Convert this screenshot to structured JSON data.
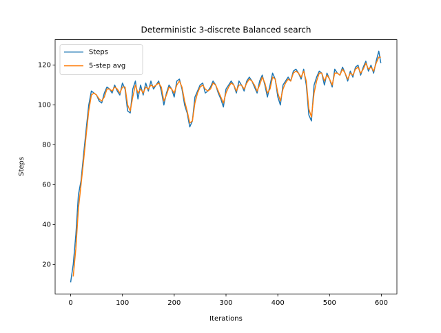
{
  "chart_data": {
    "type": "line",
    "title": "Deterministic 3-discrete Balanced search",
    "x_label": "Iterations",
    "y_label": "Steps",
    "x": [
      0,
      5,
      10,
      15,
      20,
      25,
      30,
      35,
      40,
      45,
      50,
      55,
      60,
      65,
      70,
      75,
      80,
      85,
      90,
      95,
      100,
      105,
      110,
      115,
      120,
      125,
      130,
      135,
      140,
      145,
      150,
      155,
      160,
      165,
      170,
      175,
      180,
      185,
      190,
      195,
      200,
      205,
      210,
      215,
      220,
      225,
      230,
      235,
      240,
      245,
      250,
      255,
      260,
      265,
      270,
      275,
      280,
      285,
      290,
      295,
      300,
      305,
      310,
      315,
      320,
      325,
      330,
      335,
      340,
      345,
      350,
      355,
      360,
      365,
      370,
      375,
      380,
      385,
      390,
      395,
      400,
      405,
      410,
      415,
      420,
      425,
      430,
      435,
      440,
      445,
      450,
      455,
      460,
      465,
      470,
      475,
      480,
      485,
      490,
      495,
      500,
      505,
      510,
      515,
      520,
      525,
      530,
      535,
      540,
      545,
      550,
      555,
      560,
      565,
      570,
      575,
      580,
      585,
      590,
      595,
      599
    ],
    "series": [
      {
        "name": "Steps",
        "color": "#1f77b4",
        "values": [
          11,
          20,
          35,
          55,
          62,
          75,
          88,
          100,
          107,
          106,
          105,
          102,
          101,
          106,
          109,
          108,
          106,
          110,
          107,
          105,
          111,
          108,
          97,
          96,
          108,
          112,
          103,
          110,
          105,
          111,
          107,
          112,
          108,
          110,
          112,
          107,
          100,
          106,
          110,
          108,
          104,
          112,
          113,
          108,
          100,
          96,
          89,
          92,
          104,
          107,
          110,
          111,
          106,
          107,
          109,
          112,
          110,
          106,
          103,
          99,
          108,
          110,
          112,
          110,
          106,
          112,
          110,
          107,
          112,
          114,
          112,
          109,
          106,
          112,
          115,
          110,
          104,
          110,
          116,
          113,
          104,
          100,
          110,
          112,
          114,
          112,
          117,
          118,
          116,
          113,
          118,
          110,
          95,
          92,
          110,
          114,
          117,
          116,
          110,
          116,
          113,
          109,
          118,
          116,
          115,
          119,
          116,
          112,
          117,
          114,
          119,
          120,
          115,
          119,
          122,
          117,
          120,
          116,
          122,
          127,
          121
        ]
      },
      {
        "name": "5-step avg",
        "color": "#ff7f0e",
        "values": [
          null,
          14,
          28,
          48,
          60,
          72,
          85,
          97,
          105,
          106,
          105,
          103,
          102,
          104,
          108,
          108,
          107,
          109,
          108,
          106,
          109,
          109,
          100,
          97,
          104,
          110,
          106,
          108,
          106,
          109,
          108,
          110,
          109,
          110,
          111,
          109,
          102,
          105,
          109,
          108,
          106,
          110,
          112,
          109,
          102,
          97,
          91,
          92,
          101,
          106,
          109,
          110,
          108,
          107,
          108,
          111,
          110,
          107,
          104,
          101,
          106,
          109,
          111,
          110,
          107,
          110,
          110,
          108,
          111,
          113,
          112,
          110,
          107,
          110,
          114,
          111,
          106,
          108,
          114,
          113,
          106,
          102,
          108,
          111,
          113,
          112,
          116,
          117,
          116,
          114,
          117,
          112,
          98,
          94,
          106,
          112,
          116,
          116,
          112,
          115,
          113,
          110,
          116,
          116,
          115,
          118,
          116,
          113,
          116,
          115,
          118,
          119,
          116,
          118,
          121,
          118,
          119,
          117,
          121,
          124,
          124
        ]
      }
    ],
    "xlim": [
      -30,
      630
    ],
    "ylim": [
      5.2,
      132.8
    ],
    "xticks": [
      0,
      100,
      200,
      300,
      400,
      500,
      600
    ],
    "yticks": [
      20,
      40,
      60,
      80,
      100,
      120
    ],
    "legend": "upper left"
  }
}
